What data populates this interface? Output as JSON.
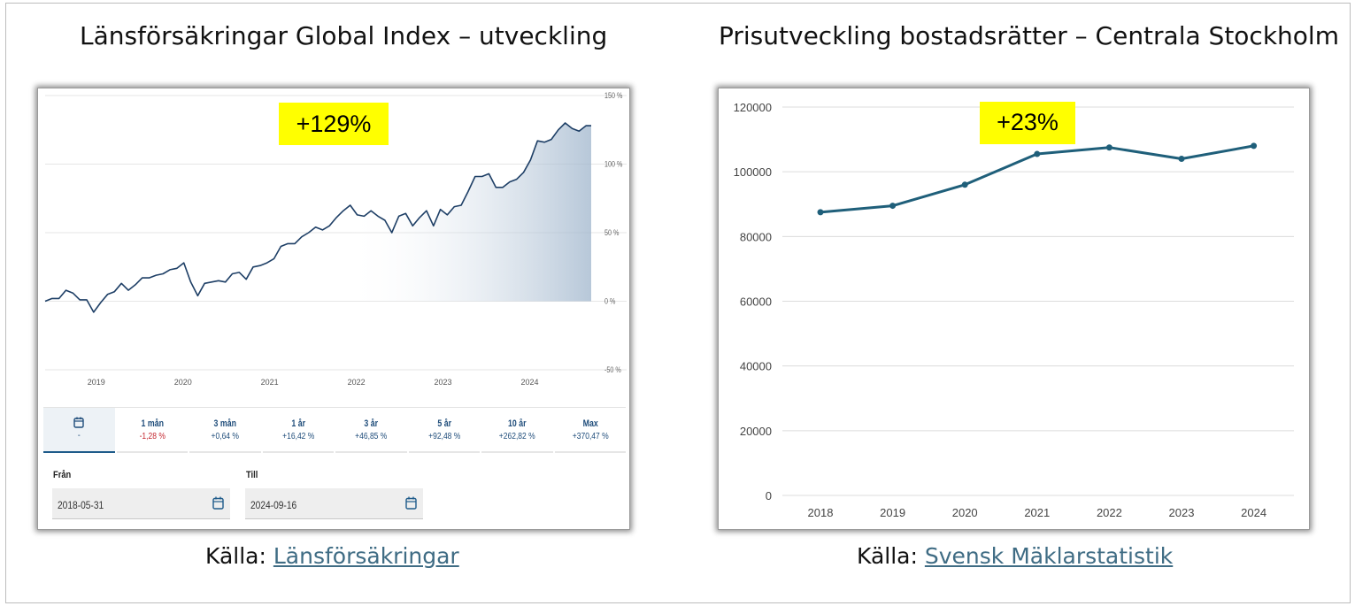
{
  "left_panel": {
    "title": "Länsförsäkringar Global Index – utveckling",
    "badge": "+129%",
    "source_prefix": "Källa: ",
    "source_link": "Länsförsäkringar",
    "tabs": [
      {
        "label": "",
        "value": "-",
        "icon": "calendar-icon"
      },
      {
        "label": "1 mån",
        "value": "-1,28 %"
      },
      {
        "label": "3 mån",
        "value": "+0,64 %"
      },
      {
        "label": "1 år",
        "value": "+16,42 %"
      },
      {
        "label": "3 år",
        "value": "+46,85 %"
      },
      {
        "label": "5 år",
        "value": "+92,48 %"
      },
      {
        "label": "10 år",
        "value": "+262,82 %"
      },
      {
        "label": "Max",
        "value": "+370,47 %"
      }
    ],
    "date_from_label": "Från",
    "date_from_value": "2018-05-31",
    "date_to_label": "Till",
    "date_to_value": "2024-09-16",
    "colors": {
      "line": "#1e3f66",
      "negative": "#c4262e",
      "accent": "#1e5b8a"
    }
  },
  "right_panel": {
    "title": "Prisutveckling bostadsrätter – Centrala Stockholm",
    "badge": "+23%",
    "source_prefix": "Källa: ",
    "source_link": "Svensk Mäklarstatistik",
    "colors": {
      "line": "#1f5f7a"
    }
  },
  "chart_data": [
    {
      "type": "area",
      "title": "",
      "ylim": [
        -50,
        150
      ],
      "y_ticks": [
        -50,
        0,
        50,
        100,
        150
      ],
      "y_tick_labels": [
        "-50 %",
        "0 %",
        "50 %",
        "100 %",
        "150 %"
      ],
      "x_tick_labels": [
        "2019",
        "2020",
        "2021",
        "2022",
        "2023",
        "2024"
      ],
      "x_tick_values": [
        2019.0,
        2020.0,
        2021.0,
        2022.0,
        2023.0,
        2024.0
      ],
      "xlim": [
        2018.41,
        2024.71
      ],
      "y_axis_position": "right",
      "grid": true,
      "series": [
        {
          "x": [
            2018.41,
            2018.49,
            2018.57,
            2018.65,
            2018.73,
            2018.81,
            2018.89,
            2018.97,
            2019.05,
            2019.13,
            2019.21,
            2019.29,
            2019.37,
            2019.45,
            2019.53,
            2019.61,
            2019.69,
            2019.77,
            2019.85,
            2019.93,
            2020.01,
            2020.09,
            2020.17,
            2020.25,
            2020.33,
            2020.41,
            2020.49,
            2020.57,
            2020.65,
            2020.73,
            2020.81,
            2020.89,
            2020.97,
            2021.05,
            2021.13,
            2021.21,
            2021.29,
            2021.37,
            2021.45,
            2021.53,
            2021.61,
            2021.69,
            2021.77,
            2021.85,
            2021.93,
            2022.01,
            2022.09,
            2022.17,
            2022.25,
            2022.33,
            2022.41,
            2022.49,
            2022.57,
            2022.65,
            2022.73,
            2022.81,
            2022.89,
            2022.97,
            2023.05,
            2023.13,
            2023.21,
            2023.29,
            2023.37,
            2023.45,
            2023.53,
            2023.61,
            2023.69,
            2023.77,
            2023.85,
            2023.93,
            2024.01,
            2024.09,
            2024.17,
            2024.25,
            2024.33,
            2024.41,
            2024.49,
            2024.57,
            2024.65,
            2024.71
          ],
          "y": [
            0,
            2,
            2,
            8,
            6,
            1,
            1,
            -8,
            -1,
            5,
            7,
            13,
            8,
            12,
            17,
            17,
            19,
            20,
            23,
            24,
            28,
            14,
            4,
            13,
            14,
            15,
            14,
            20,
            21,
            16,
            25,
            26,
            28,
            31,
            40,
            42,
            42,
            47,
            50,
            54,
            52,
            55,
            61,
            66,
            70,
            63,
            62,
            66,
            62,
            59,
            50,
            62,
            64,
            55,
            61,
            66,
            55,
            67,
            63,
            69,
            70,
            80,
            91,
            91,
            93,
            83,
            83,
            87,
            89,
            94,
            103,
            117,
            116,
            118,
            125,
            130,
            126,
            124,
            128,
            128
          ]
        }
      ]
    },
    {
      "type": "line",
      "title": "",
      "categories": [
        "2018",
        "2019",
        "2020",
        "2021",
        "2022",
        "2023",
        "2024"
      ],
      "ylim": [
        0,
        120000
      ],
      "y_ticks": [
        0,
        20000,
        40000,
        60000,
        80000,
        100000,
        120000
      ],
      "grid": true,
      "series": [
        {
          "values": [
            87500,
            89500,
            96000,
            105500,
            107500,
            104000,
            108000
          ]
        }
      ]
    }
  ]
}
